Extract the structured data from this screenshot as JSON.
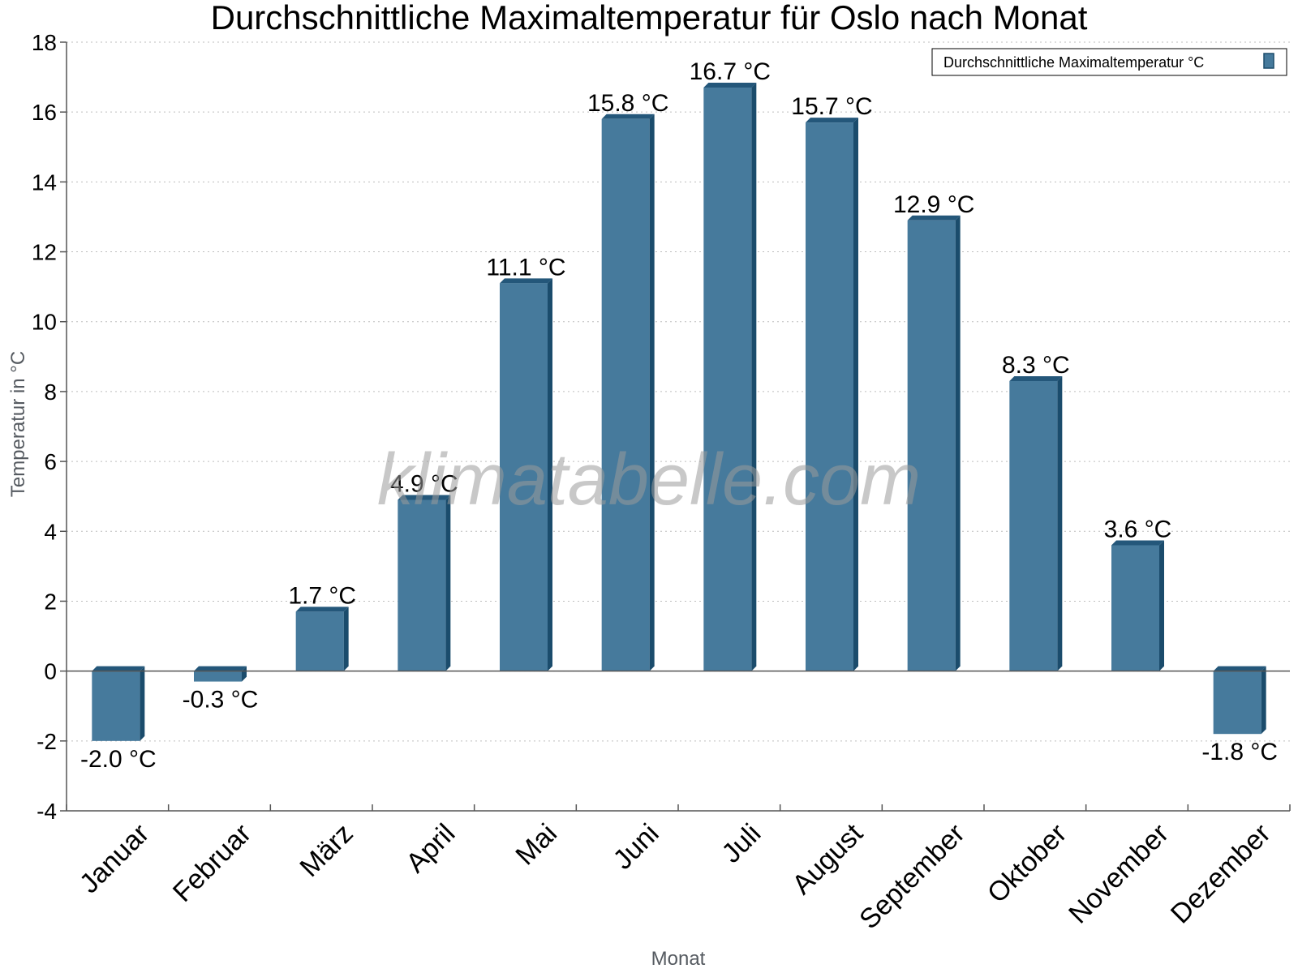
{
  "chart_data": {
    "type": "bar",
    "title": "Durchschnittliche Maximaltemperatur für Oslo nach Monat",
    "xlabel": "Monat",
    "ylabel": "Temperatur in °C",
    "categories": [
      "Januar",
      "Februar",
      "März",
      "April",
      "Mai",
      "Juni",
      "Juli",
      "August",
      "September",
      "Oktober",
      "November",
      "Dezember"
    ],
    "series": [
      {
        "name": "Durchschnittliche Maximaltemperatur °C",
        "values": [
          -2.0,
          -0.3,
          1.7,
          4.9,
          11.1,
          15.8,
          16.7,
          15.7,
          12.9,
          8.3,
          3.6,
          -1.8
        ],
        "labels": [
          "-2.0 °C",
          "-0.3 °C",
          "1.7 °C",
          "4.9 °C",
          "11.1 °C",
          "15.8 °C",
          "16.7 °C",
          "15.7 °C",
          "12.9 °C",
          "8.3 °C",
          "3.6 °C",
          "-1.8 °C"
        ]
      }
    ],
    "ylim": [
      -4,
      18
    ],
    "yticks": [
      -4,
      -2,
      0,
      2,
      4,
      6,
      8,
      10,
      12,
      14,
      16,
      18
    ],
    "ytick_labels": [
      "-4",
      "-2",
      "0",
      "2",
      "4",
      "6",
      "8",
      "10",
      "12",
      "14",
      "16",
      "18"
    ],
    "grid": true,
    "legend_position": "top-right",
    "colors": {
      "bar_front": "#467a9c",
      "bar_side": "#1b4c6c",
      "bar_top": "#24577a",
      "grid": "#bdbdbd",
      "axis": "#555555"
    }
  },
  "watermark": "klimatabelle.com"
}
